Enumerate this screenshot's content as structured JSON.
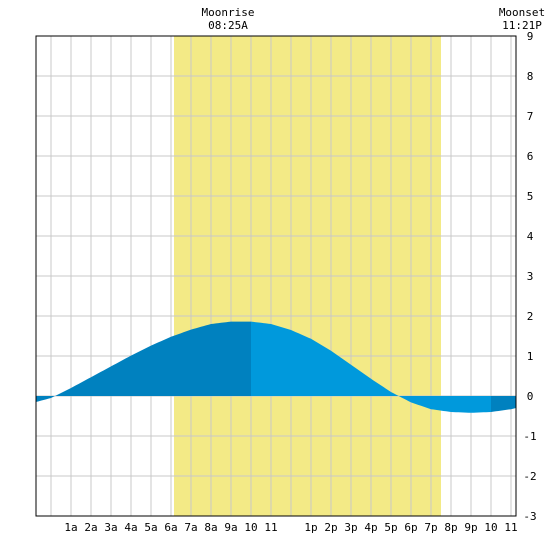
{
  "chart_data": {
    "type": "area",
    "top_labels": {
      "moonrise": {
        "title": "Moonrise",
        "time": "08:25A",
        "hour": 8.42
      },
      "moonset": {
        "title": "Moonset",
        "time": "11:21P",
        "hour": 23.35
      }
    },
    "x_ticks": [
      "1a",
      "2a",
      "3a",
      "4a",
      "5a",
      "6a",
      "7a",
      "8a",
      "9a",
      "10",
      "11",
      "1p",
      "2p",
      "3p",
      "4p",
      "5p",
      "6p",
      "7p",
      "8p",
      "9p",
      "10",
      "11"
    ],
    "x_tick_hours": [
      1,
      2,
      3,
      4,
      5,
      6,
      7,
      8,
      9,
      10,
      11,
      13,
      14,
      15,
      16,
      17,
      18,
      19,
      20,
      21,
      22,
      23
    ],
    "xlim": [
      -0.75,
      23.25
    ],
    "y_ticks": [
      "9",
      "8",
      "7",
      "6",
      "5",
      "4",
      "3",
      "2",
      "1",
      "0",
      "-1",
      "-2",
      "-3"
    ],
    "ylim": [
      -3,
      9
    ],
    "grid": true,
    "daylight": {
      "start_hour": 6.15,
      "end_hour": 19.5
    },
    "series": [
      {
        "x": [
          -0.75,
          0,
          1,
          2,
          3,
          4,
          5,
          6,
          7,
          8,
          9,
          10,
          11,
          12,
          13,
          14,
          15,
          16,
          17,
          18,
          19,
          20,
          21,
          22,
          23,
          23.25
        ],
        "values": [
          -0.15,
          -0.05,
          0.2,
          0.47,
          0.74,
          1.01,
          1.26,
          1.48,
          1.66,
          1.8,
          1.86,
          1.86,
          1.8,
          1.65,
          1.43,
          1.13,
          0.78,
          0.43,
          0.1,
          -0.16,
          -0.33,
          -0.4,
          -0.42,
          -0.4,
          -0.33,
          -0.3
        ]
      }
    ],
    "colors": {
      "daylight": "#f3ea86",
      "grid": "#c8c8c8",
      "tide_dark": "#0081bf",
      "tide_light": "#0099dc",
      "axis": "#000000"
    }
  }
}
